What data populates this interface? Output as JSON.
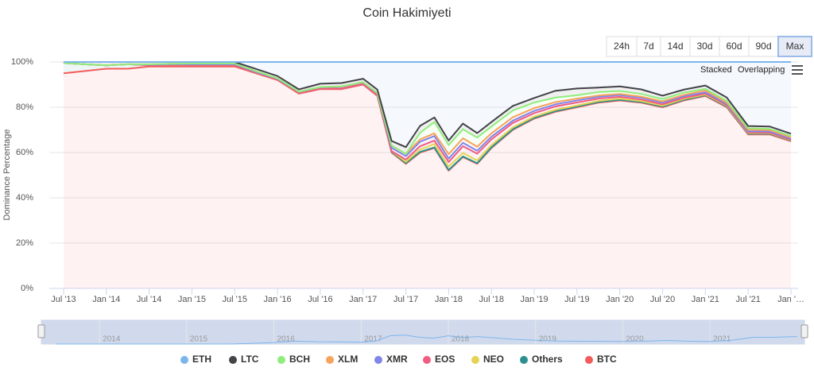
{
  "chart_data": {
    "type": "stacked-line",
    "title": "Coin Hakimiyeti",
    "ylabel": "Dominance Percentage",
    "x": [
      "2013-07",
      "2013-10",
      "2014-01",
      "2014-04",
      "2014-07",
      "2014-10",
      "2015-01",
      "2015-04",
      "2015-07",
      "2015-10",
      "2016-01",
      "2016-04",
      "2016-07",
      "2016-10",
      "2017-01",
      "2017-03",
      "2017-05",
      "2017-07",
      "2017-09",
      "2017-11",
      "2018-01",
      "2018-03",
      "2018-05",
      "2018-07",
      "2018-10",
      "2019-01",
      "2019-04",
      "2019-07",
      "2019-10",
      "2020-01",
      "2020-04",
      "2020-07",
      "2020-10",
      "2021-01",
      "2021-04",
      "2021-07",
      "2021-10",
      "2022-01"
    ],
    "xlim": [
      "2013-05",
      "2022-02"
    ],
    "xticks": [
      {
        "value": "2013-07",
        "label": "Jul '13"
      },
      {
        "value": "2014-01",
        "label": "Jan '14"
      },
      {
        "value": "2014-07",
        "label": "Jul '14"
      },
      {
        "value": "2015-01",
        "label": "Jan '15"
      },
      {
        "value": "2015-07",
        "label": "Jul '15"
      },
      {
        "value": "2016-01",
        "label": "Jan '16"
      },
      {
        "value": "2016-07",
        "label": "Jul '16"
      },
      {
        "value": "2017-01",
        "label": "Jan '17"
      },
      {
        "value": "2017-07",
        "label": "Jul '17"
      },
      {
        "value": "2018-01",
        "label": "Jan '18"
      },
      {
        "value": "2018-07",
        "label": "Jul '18"
      },
      {
        "value": "2019-01",
        "label": "Jan '19"
      },
      {
        "value": "2019-07",
        "label": "Jul '19"
      },
      {
        "value": "2020-01",
        "label": "Jan '20"
      },
      {
        "value": "2020-07",
        "label": "Jul '20"
      },
      {
        "value": "2021-01",
        "label": "Jan '21"
      },
      {
        "value": "2021-07",
        "label": "Jul '21"
      },
      {
        "value": "2022-01",
        "label": "Jan '…"
      }
    ],
    "ylim": [
      0,
      100
    ],
    "yticks": [
      {
        "value": 0,
        "label": "0%"
      },
      {
        "value": 20,
        "label": "20%"
      },
      {
        "value": 40,
        "label": "40%"
      },
      {
        "value": 60,
        "label": "60%"
      },
      {
        "value": 80,
        "label": "80%"
      },
      {
        "value": 100,
        "label": "100%"
      }
    ],
    "grid": true,
    "series": [
      {
        "name": "ETH",
        "color": "#7cb5ec",
        "values": [
          0,
          0,
          0,
          0,
          0,
          0,
          0,
          0,
          0,
          3.1,
          6.2,
          12.1,
          9.6,
          9.3,
          7.4,
          12.2,
          34.9,
          37.6,
          28.2,
          24.5,
          34.7,
          27.2,
          31.4,
          26.5,
          19.4,
          15.9,
          12.7,
          11.7,
          11.3,
          10.8,
          12.1,
          14.9,
          12.2,
          10.4,
          15.7,
          28.3,
          28.5,
          31.7
        ]
      },
      {
        "name": "LTC",
        "color": "#434348",
        "values": [
          0.5,
          1,
          1.5,
          1,
          1,
          0.8,
          0.7,
          0.7,
          0.7,
          1,
          1,
          1,
          1.5,
          1.5,
          1.5,
          1.5,
          2,
          3,
          3,
          2,
          2,
          2.5,
          2,
          2,
          2,
          2,
          3,
          3,
          2,
          2,
          2,
          1.5,
          1.3,
          1.5,
          1.5,
          1,
          1,
          1
        ]
      },
      {
        "name": "BCH",
        "color": "#90ed7d",
        "values": [
          0,
          0,
          0,
          0,
          0,
          0,
          0,
          0,
          0,
          0,
          0,
          0,
          0,
          0,
          0,
          0,
          0,
          0,
          3,
          5,
          4,
          4,
          4,
          3,
          3,
          2.5,
          2,
          1.5,
          1.5,
          1.3,
          1.2,
          1,
          1,
          0.7,
          0.8,
          0.6,
          0.6,
          0.6
        ]
      },
      {
        "name": "XLM",
        "color": "#f7a35c",
        "values": [
          0,
          0,
          0,
          0,
          0.2,
          0.2,
          0.3,
          0.3,
          0.3,
          0.3,
          0.2,
          0.1,
          0.1,
          0.1,
          0.1,
          0.2,
          1,
          1,
          1,
          1.2,
          2,
          2,
          1.8,
          1.5,
          1.5,
          1.2,
          1,
          0.8,
          0.6,
          0.5,
          0.5,
          0.6,
          0.6,
          0.8,
          0.6,
          0.7,
          0.6,
          0.6
        ]
      },
      {
        "name": "XMR",
        "color": "#8085e9",
        "values": [
          0,
          0,
          0,
          0,
          0.2,
          0.3,
          0.3,
          0.3,
          0.3,
          0.3,
          0.3,
          0.5,
          0.5,
          0.8,
          0.7,
          0.8,
          1.5,
          1.5,
          2,
          2,
          1.5,
          1.5,
          1.3,
          1.2,
          1,
          1,
          0.9,
          0.9,
          0.8,
          0.8,
          0.8,
          0.7,
          0.7,
          0.6,
          0.5,
          0.5,
          0.5,
          0.4
        ]
      },
      {
        "name": "EOS",
        "color": "#f15c80",
        "values": [
          0,
          0,
          0,
          0,
          0,
          0,
          0,
          0,
          0,
          0,
          0,
          0,
          0,
          0,
          0,
          0,
          0,
          1,
          1.5,
          1.5,
          2,
          3,
          3,
          2.5,
          2,
          1.5,
          1.5,
          1.3,
          1,
          0.8,
          0.7,
          0.6,
          0.5,
          0.4,
          0.3,
          0.3,
          0.2,
          0.2
        ]
      },
      {
        "name": "NEO",
        "color": "#e4d354",
        "values": [
          0,
          0,
          0,
          0,
          0,
          0,
          0,
          0,
          0,
          0,
          0,
          0,
          0,
          0,
          0,
          0,
          0.3,
          0.6,
          1,
          1.5,
          1.5,
          1.5,
          1.2,
          1,
          0.8,
          0.6,
          0.6,
          0.5,
          0.5,
          0.5,
          0.4,
          0.4,
          0.4,
          0.3,
          0.3,
          0.3,
          0.3,
          0.2
        ]
      },
      {
        "name": "Others",
        "color": "#2b908f",
        "values": [
          4.5,
          3,
          1.5,
          2,
          0.6,
          0.7,
          0.7,
          0.7,
          0.7,
          0.3,
          0.3,
          0.3,
          0.3,
          0.3,
          0.3,
          0.3,
          0.3,
          0.3,
          0.3,
          0.3,
          0.3,
          0.3,
          0.3,
          0.3,
          0.3,
          0.3,
          0.3,
          0.3,
          0.3,
          0.3,
          0.3,
          0.3,
          0.3,
          0.3,
          0.3,
          0.3,
          0.3,
          0.3
        ]
      },
      {
        "name": "BTC",
        "color": "#f45b5b",
        "values": [
          95,
          96,
          97,
          97,
          98,
          98,
          98,
          98,
          98,
          95,
          92,
          86,
          88,
          88,
          90,
          85,
          60,
          55,
          60,
          62,
          52,
          58,
          55,
          62,
          70,
          75,
          78,
          80,
          82,
          83,
          82,
          80,
          83,
          85,
          80,
          68,
          68,
          65
        ]
      }
    ],
    "navigator": {
      "labels": [
        "2014",
        "2015",
        "2016",
        "2017",
        "2018",
        "2019",
        "2020",
        "2021"
      ]
    }
  },
  "controls": {
    "range_buttons": [
      "24h",
      "7d",
      "14d",
      "30d",
      "60d",
      "90d",
      "Max"
    ],
    "selected_range": "Max",
    "view_options": [
      "Stacked",
      "Overlapping"
    ]
  }
}
